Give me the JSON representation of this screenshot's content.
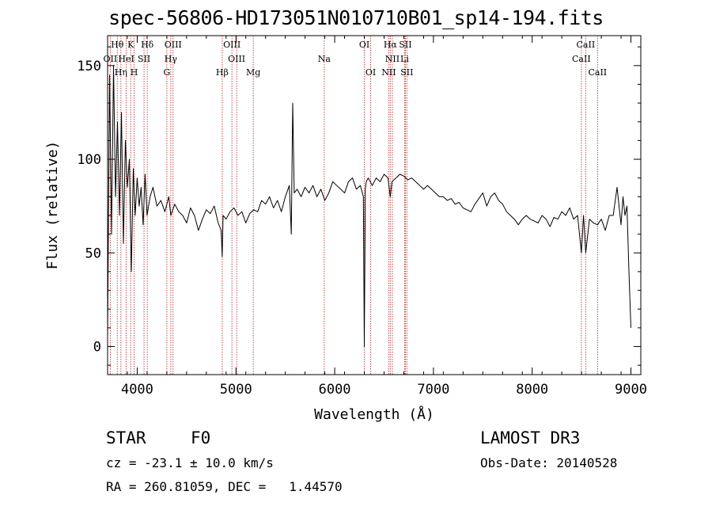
{
  "chart_data": {
    "type": "line",
    "title": "spec-56806-HD173051N010710B01_sp14-194.fits",
    "xlabel": "Wavelength (Å)",
    "ylabel": "Flux (relative)",
    "xlim": [
      3700,
      9100
    ],
    "ylim": [
      -15,
      166
    ],
    "x_ticks": [
      4000,
      5000,
      6000,
      7000,
      8000,
      9000
    ],
    "x_tick_labels": [
      "4000",
      "5000",
      "6000",
      "7000",
      "8000",
      "9000"
    ],
    "y_ticks": [
      0,
      50,
      100,
      150
    ],
    "y_tick_labels": [
      "0",
      "50",
      "100",
      "150"
    ],
    "series": [
      {
        "name": "spectrum",
        "color": "#000000",
        "x": [
          3700,
          3720,
          3740,
          3760,
          3780,
          3800,
          3820,
          3840,
          3860,
          3880,
          3900,
          3920,
          3940,
          3960,
          3980,
          4000,
          4020,
          4040,
          4060,
          4080,
          4100,
          4130,
          4160,
          4200,
          4240,
          4280,
          4320,
          4340,
          4380,
          4420,
          4460,
          4500,
          4540,
          4580,
          4620,
          4660,
          4700,
          4740,
          4780,
          4820,
          4850,
          4861,
          4870,
          4900,
          4940,
          4980,
          5020,
          5060,
          5100,
          5140,
          5180,
          5220,
          5260,
          5300,
          5340,
          5380,
          5420,
          5460,
          5500,
          5540,
          5560,
          5575,
          5590,
          5620,
          5660,
          5700,
          5740,
          5780,
          5820,
          5860,
          5900,
          5940,
          5980,
          6020,
          6060,
          6100,
          6140,
          6180,
          6220,
          6260,
          6290,
          6300,
          6310,
          6320,
          6340,
          6380,
          6420,
          6460,
          6500,
          6540,
          6563,
          6580,
          6620,
          6660,
          6700,
          6740,
          6780,
          6820,
          6860,
          6900,
          6940,
          6980,
          7020,
          7060,
          7100,
          7140,
          7180,
          7220,
          7260,
          7300,
          7340,
          7380,
          7420,
          7460,
          7500,
          7540,
          7580,
          7620,
          7660,
          7700,
          7740,
          7780,
          7820,
          7860,
          7900,
          7940,
          7980,
          8020,
          8060,
          8100,
          8140,
          8180,
          8220,
          8260,
          8300,
          8340,
          8380,
          8420,
          8460,
          8498,
          8520,
          8542,
          8580,
          8620,
          8662,
          8700,
          8740,
          8780,
          8820,
          8860,
          8900,
          8920,
          8940,
          8960,
          8980,
          9000
        ],
        "values": [
          5,
          145,
          60,
          150,
          80,
          120,
          70,
          125,
          55,
          110,
          85,
          100,
          40,
          95,
          70,
          90,
          75,
          85,
          65,
          92,
          70,
          80,
          85,
          75,
          78,
          72,
          80,
          70,
          76,
          72,
          70,
          66,
          74,
          70,
          62,
          68,
          73,
          71,
          75,
          66,
          62,
          48,
          70,
          68,
          72,
          74,
          70,
          72,
          66,
          71,
          73,
          72,
          78,
          76,
          80,
          74,
          78,
          72,
          80,
          86,
          60,
          130,
          82,
          84,
          80,
          85,
          82,
          86,
          80,
          84,
          78,
          82,
          88,
          86,
          84,
          82,
          88,
          90,
          84,
          86,
          80,
          0,
          84,
          88,
          90,
          86,
          90,
          88,
          92,
          90,
          80,
          88,
          90,
          92,
          91,
          89,
          90,
          88,
          86,
          84,
          86,
          84,
          82,
          80,
          80,
          78,
          79,
          76,
          77,
          74,
          73,
          72,
          76,
          79,
          82,
          75,
          80,
          82,
          78,
          76,
          72,
          70,
          68,
          65,
          68,
          70,
          68,
          67,
          66,
          70,
          68,
          64,
          69,
          68,
          72,
          70,
          74,
          68,
          70,
          50,
          70,
          50,
          68,
          66,
          65,
          68,
          62,
          70,
          70,
          85,
          65,
          80,
          70,
          75,
          40,
          10
        ]
      }
    ],
    "lines": [
      {
        "name": "OII",
        "wavelength": 3727
      },
      {
        "name": "Hθ",
        "wavelength": 3798
      },
      {
        "name": "Hη",
        "wavelength": 3835
      },
      {
        "name": "K",
        "wavelength": 3934
      },
      {
        "name": "H",
        "wavelength": 3969
      },
      {
        "name": "HeI",
        "wavelength": 3889
      },
      {
        "name": "SII",
        "wavelength": 4069
      },
      {
        "name": "Hδ",
        "wavelength": 4102
      },
      {
        "name": "G",
        "wavelength": 4300
      },
      {
        "name": "Hγ",
        "wavelength": 4340
      },
      {
        "name": "OIII",
        "wavelength": 4363
      },
      {
        "name": "Hβ",
        "wavelength": 4861
      },
      {
        "name": "OIII",
        "wavelength": 4959
      },
      {
        "name": "OIII",
        "wavelength": 5007
      },
      {
        "name": "Mg",
        "wavelength": 5175
      },
      {
        "name": "Na",
        "wavelength": 5894
      },
      {
        "name": "OI",
        "wavelength": 6300
      },
      {
        "name": "OI",
        "wavelength": 6364
      },
      {
        "name": "NII",
        "wavelength": 6548
      },
      {
        "name": "Hα",
        "wavelength": 6563
      },
      {
        "name": "NII",
        "wavelength": 6584
      },
      {
        "name": "Li",
        "wavelength": 6708
      },
      {
        "name": "SII",
        "wavelength": 6716
      },
      {
        "name": "SII",
        "wavelength": 6731
      },
      {
        "name": "CaII",
        "wavelength": 8498
      },
      {
        "name": "CaII",
        "wavelength": 8542
      },
      {
        "name": "CaII",
        "wavelength": 8662
      }
    ],
    "line_labels": [
      {
        "text": "Hθ",
        "row": 1,
        "wavelength": 3798
      },
      {
        "text": "K",
        "row": 1,
        "wavelength": 3934
      },
      {
        "text": "Hδ",
        "row": 1,
        "wavelength": 4102
      },
      {
        "text": "OIII",
        "row": 1,
        "wavelength": 4363
      },
      {
        "text": "OIII",
        "row": 1,
        "wavelength": 4959
      },
      {
        "text": "OI",
        "row": 1,
        "wavelength": 6300
      },
      {
        "text": "Hα",
        "row": 1,
        "wavelength": 6563
      },
      {
        "text": "SII",
        "row": 1,
        "wavelength": 6716
      },
      {
        "text": "CaII",
        "row": 1,
        "wavelength": 8542
      },
      {
        "text": "OII",
        "row": 2,
        "wavelength": 3727
      },
      {
        "text": "HeI",
        "row": 2,
        "wavelength": 3889
      },
      {
        "text": "SII",
        "row": 2,
        "wavelength": 4069
      },
      {
        "text": "Hγ",
        "row": 2,
        "wavelength": 4340
      },
      {
        "text": "OIII",
        "row": 2,
        "wavelength": 5007
      },
      {
        "text": "Na",
        "row": 2,
        "wavelength": 5894
      },
      {
        "text": "NII",
        "row": 2,
        "wavelength": 6584
      },
      {
        "text": "Li",
        "row": 2,
        "wavelength": 6708
      },
      {
        "text": "CaII",
        "row": 2,
        "wavelength": 8498
      },
      {
        "text": "Hη",
        "row": 3,
        "wavelength": 3835
      },
      {
        "text": "H",
        "row": 3,
        "wavelength": 3969
      },
      {
        "text": "G",
        "row": 3,
        "wavelength": 4300
      },
      {
        "text": "Hβ",
        "row": 3,
        "wavelength": 4861
      },
      {
        "text": "Mg",
        "row": 3,
        "wavelength": 5175
      },
      {
        "text": "OI",
        "row": 3,
        "wavelength": 6364
      },
      {
        "text": "NII",
        "row": 3,
        "wavelength": 6548
      },
      {
        "text": "SII",
        "row": 3,
        "wavelength": 6731
      },
      {
        "text": "CaII",
        "row": 3,
        "wavelength": 8662
      }
    ],
    "line_color": "#b22222",
    "axis_color": "#000000"
  },
  "footer": {
    "object_class": "STAR",
    "subclass": "F0",
    "survey": "LAMOST DR3",
    "redshift": "cz = -23.1 ± 10.0 km/s",
    "obs_date": "Obs-Date: 20140528",
    "coords": "RA = 260.81059, DEC =   1.44570"
  }
}
